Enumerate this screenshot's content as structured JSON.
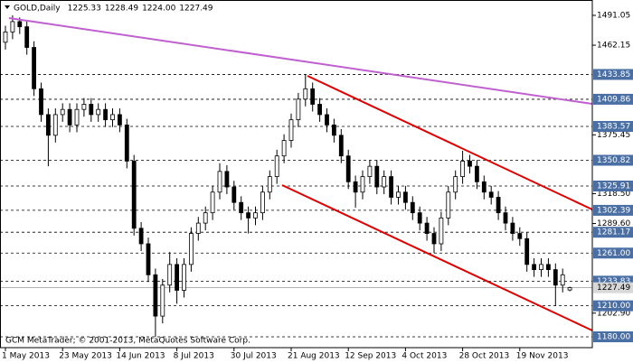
{
  "chart_data": {
    "type": "candlestick",
    "title": "GOLD,Daily",
    "header_ohlc": [
      "1225.33",
      "1228.49",
      "1224.00",
      "1227.49"
    ],
    "footer": "GCM MetaTrader; © 2001-2013, MetaQuotes Software Corp.",
    "categories": [
      "1 May 2013",
      null,
      null,
      null,
      null,
      null,
      null,
      null,
      "23 May 2013",
      null,
      null,
      null,
      null,
      null,
      null,
      null,
      "14 Jun 2013",
      null,
      null,
      null,
      null,
      null,
      null,
      null,
      "8 Jul 2013",
      null,
      null,
      null,
      null,
      null,
      null,
      null,
      "30 Jul 2013",
      null,
      null,
      null,
      null,
      null,
      null,
      null,
      "21 Aug 2013",
      null,
      null,
      null,
      null,
      null,
      null,
      null,
      "12 Sep 2013",
      null,
      null,
      null,
      null,
      null,
      null,
      null,
      "4 Oct 2013",
      null,
      null,
      null,
      null,
      null,
      null,
      null,
      "28 Oct 2013",
      null,
      null,
      null,
      null,
      null,
      null,
      null,
      "19 Nov 2013",
      null,
      null,
      null,
      null,
      null,
      null,
      null
    ],
    "open": [
      1465,
      1475,
      1485,
      1480,
      1460,
      1420,
      1395,
      1375,
      1395,
      1400,
      1385,
      1400,
      1405,
      1395,
      1400,
      1390,
      1395,
      1385,
      1350,
      1285,
      1270,
      1240,
      1200,
      1230,
      1250,
      1225,
      1250,
      1280,
      1290,
      1300,
      1320,
      1340,
      1325,
      1310,
      1300,
      1295,
      1300,
      1320,
      1335,
      1355,
      1370,
      1390,
      1410,
      1420,
      1405,
      1395,
      1385,
      1375,
      1355,
      1330,
      1320,
      1335,
      1345,
      1325,
      1335,
      1315,
      1320,
      1310,
      1300,
      1290,
      1280,
      1270,
      1295,
      1320,
      1335,
      1350,
      1345,
      1330,
      1320,
      1315,
      1300,
      1290,
      1280,
      1275,
      1250,
      1245,
      1250,
      1245,
      1230,
      1225.33
    ],
    "high": [
      1481,
      1491,
      1489,
      1486,
      1466,
      1426,
      1401,
      1401,
      1406,
      1406,
      1406,
      1411,
      1411,
      1406,
      1406,
      1401,
      1401,
      1391,
      1356,
      1291,
      1276,
      1246,
      1236,
      1262,
      1256,
      1256,
      1286,
      1296,
      1306,
      1326,
      1348,
      1346,
      1331,
      1316,
      1306,
      1306,
      1326,
      1341,
      1361,
      1376,
      1396,
      1416,
      1433.85,
      1426,
      1411,
      1401,
      1391,
      1381,
      1361,
      1336,
      1341,
      1351,
      1351,
      1341,
      1341,
      1326,
      1326,
      1316,
      1306,
      1296,
      1286,
      1301,
      1326,
      1341,
      1360,
      1356,
      1351,
      1336,
      1326,
      1321,
      1306,
      1296,
      1286,
      1281,
      1256,
      1256,
      1256,
      1251,
      1246,
      1228.49
    ],
    "low": [
      1458,
      1468,
      1473,
      1453,
      1413,
      1388,
      1345,
      1368,
      1388,
      1378,
      1378,
      1393,
      1388,
      1388,
      1383,
      1383,
      1378,
      1343,
      1278,
      1263,
      1233,
      1180,
      1193,
      1223,
      1212,
      1218,
      1243,
      1273,
      1283,
      1293,
      1313,
      1318,
      1303,
      1293,
      1280,
      1288,
      1293,
      1313,
      1328,
      1348,
      1363,
      1383,
      1403,
      1398,
      1388,
      1378,
      1368,
      1348,
      1323,
      1305,
      1313,
      1328,
      1318,
      1318,
      1308,
      1308,
      1303,
      1293,
      1283,
      1273,
      1261,
      1263,
      1288,
      1313,
      1328,
      1338,
      1323,
      1313,
      1308,
      1293,
      1283,
      1273,
      1268,
      1243,
      1238,
      1238,
      1238,
      1210,
      1223,
      1224
    ],
    "close": [
      1475,
      1485,
      1480,
      1460,
      1420,
      1395,
      1375,
      1395,
      1400,
      1385,
      1400,
      1405,
      1395,
      1400,
      1390,
      1395,
      1385,
      1350,
      1285,
      1270,
      1240,
      1200,
      1230,
      1250,
      1225,
      1250,
      1280,
      1290,
      1300,
      1320,
      1340,
      1325,
      1310,
      1300,
      1295,
      1300,
      1320,
      1335,
      1355,
      1370,
      1390,
      1410,
      1420,
      1405,
      1395,
      1385,
      1375,
      1355,
      1330,
      1320,
      1335,
      1345,
      1325,
      1335,
      1315,
      1320,
      1310,
      1300,
      1290,
      1280,
      1270,
      1295,
      1320,
      1335,
      1350,
      1345,
      1330,
      1320,
      1315,
      1300,
      1290,
      1280,
      1275,
      1250,
      1245,
      1250,
      1245,
      1230,
      1240,
      1227.49
    ],
    "ylim": [
      1169.5,
      1505.9
    ],
    "yticks": [
      1491.05,
      1462.15,
      1375.45,
      {
        "value": 1318.5,
        "label": "1318.50"
      },
      {
        "value": 1289.6,
        "label": "1289.60"
      },
      {
        "value": 1202.9,
        "label": "1202.90"
      }
    ],
    "levels": [
      1433.85,
      1409.86,
      1383.57,
      1350.82,
      1325.91,
      1302.39,
      1281.17,
      {
        "value": 1261,
        "label": "1261.00"
      },
      1233.83,
      {
        "value": 1210,
        "label": "1210.00"
      },
      {
        "value": 1180,
        "label": "1180.00"
      }
    ],
    "level_color": "#4a6fa5"
  }
}
